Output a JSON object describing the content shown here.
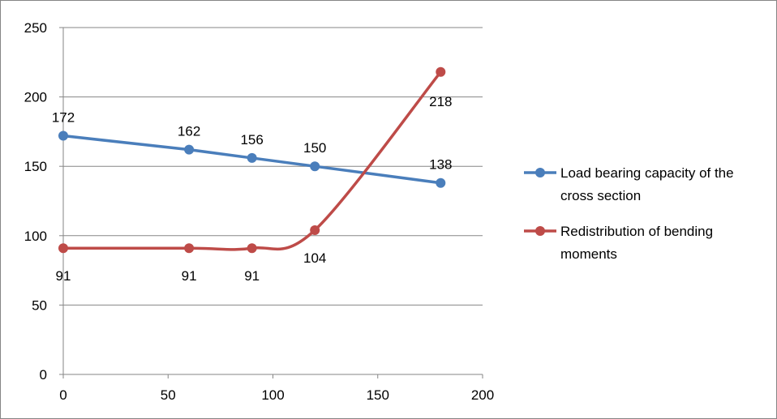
{
  "chart_data": {
    "type": "scatter",
    "title": "",
    "xlabel": "",
    "ylabel": "",
    "xlim": [
      0,
      200
    ],
    "ylim": [
      0,
      250
    ],
    "x_ticks": [
      0,
      50,
      100,
      150,
      200
    ],
    "y_ticks": [
      0,
      50,
      100,
      150,
      200,
      250
    ],
    "grid": "horizontal",
    "legend_position": "right",
    "series": [
      {
        "name": "Load bearing capacity of the cross section",
        "legend_lines": [
          "Load bearing capacity of the",
          "cross section"
        ],
        "color": "#4a7ebb",
        "smooth": false,
        "label_position": "above",
        "points": [
          {
            "x": 0,
            "y": 172,
            "label": "172"
          },
          {
            "x": 60,
            "y": 162,
            "label": "162"
          },
          {
            "x": 90,
            "y": 156,
            "label": "156"
          },
          {
            "x": 120,
            "y": 150,
            "label": "150"
          },
          {
            "x": 180,
            "y": 138,
            "label": "138"
          }
        ]
      },
      {
        "name": "Redistribution of bending moments",
        "legend_lines": [
          "Redistribution of bending",
          "moments"
        ],
        "color": "#be4b48",
        "smooth": true,
        "label_position": "below",
        "points": [
          {
            "x": 0,
            "y": 91,
            "label": "91"
          },
          {
            "x": 60,
            "y": 91,
            "label": "91"
          },
          {
            "x": 90,
            "y": 91,
            "label": "91"
          },
          {
            "x": 120,
            "y": 104,
            "label": "104"
          },
          {
            "x": 180,
            "y": 218,
            "label": "218"
          }
        ]
      }
    ]
  }
}
